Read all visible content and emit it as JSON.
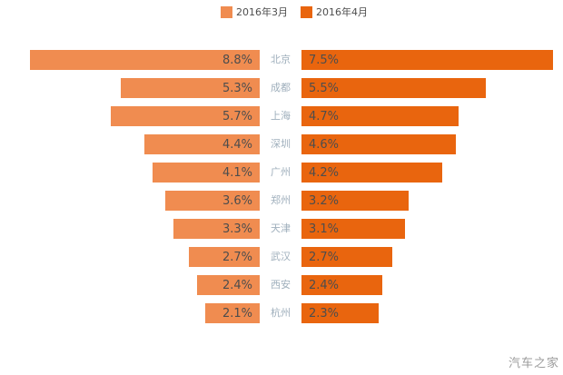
{
  "legend": [
    {
      "label": "2016年3月",
      "color": "#f08c50"
    },
    {
      "label": "2016年4月",
      "color": "#e9650e"
    }
  ],
  "watermark": "汽车之家",
  "colors": {
    "series_prev": "#f08c50",
    "series_curr": "#e9650e",
    "value_text": "#4d4d4d",
    "city_text": "#9fafbc",
    "watermark_text": "#9c9c9c",
    "background": "#ffffff"
  },
  "chart_data": {
    "type": "bar",
    "layout": "horizontal-butterfly",
    "title": "",
    "xlabel": "",
    "ylabel": "",
    "value_unit": "percent",
    "legend_position": "top-center",
    "grid": false,
    "categories": [
      "北京",
      "成都",
      "上海",
      "深圳",
      "广州",
      "郑州",
      "天津",
      "武汉",
      "西安",
      "杭州"
    ],
    "series": [
      {
        "name": "2016年3月",
        "side": "left",
        "color": "#f08c50",
        "values": [
          8.8,
          5.3,
          5.7,
          4.4,
          4.1,
          3.6,
          3.3,
          2.7,
          2.4,
          2.1
        ],
        "labels": [
          "8.8%",
          "5.3%",
          "5.7%",
          "4.4%",
          "4.1%",
          "3.6%",
          "3.3%",
          "2.7%",
          "2.4%",
          "2.1%"
        ]
      },
      {
        "name": "2016年4月",
        "side": "right",
        "color": "#e9650e",
        "values": [
          7.5,
          5.5,
          4.7,
          4.6,
          4.2,
          3.2,
          3.1,
          2.7,
          2.4,
          2.3
        ],
        "labels": [
          "7.5%",
          "5.5%",
          "4.7%",
          "4.6%",
          "4.2%",
          "3.2%",
          "3.1%",
          "2.7%",
          "2.4%",
          "2.3%"
        ]
      }
    ],
    "sorted_by": "second-series-descending"
  }
}
